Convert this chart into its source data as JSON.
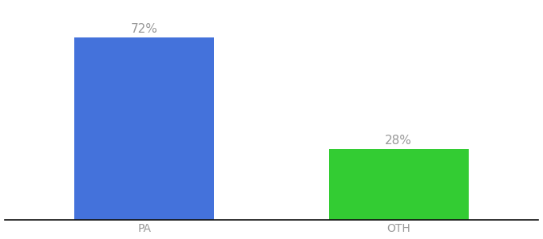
{
  "categories": [
    "PA",
    "OTH"
  ],
  "values": [
    72,
    28
  ],
  "bar_colors": [
    "#4472db",
    "#33cc33"
  ],
  "label_texts": [
    "72%",
    "28%"
  ],
  "background_color": "#ffffff",
  "ylim": [
    0,
    85
  ],
  "bar_width": 0.55,
  "label_fontsize": 11,
  "tick_fontsize": 10,
  "label_color": "#999999",
  "tick_color": "#999999"
}
